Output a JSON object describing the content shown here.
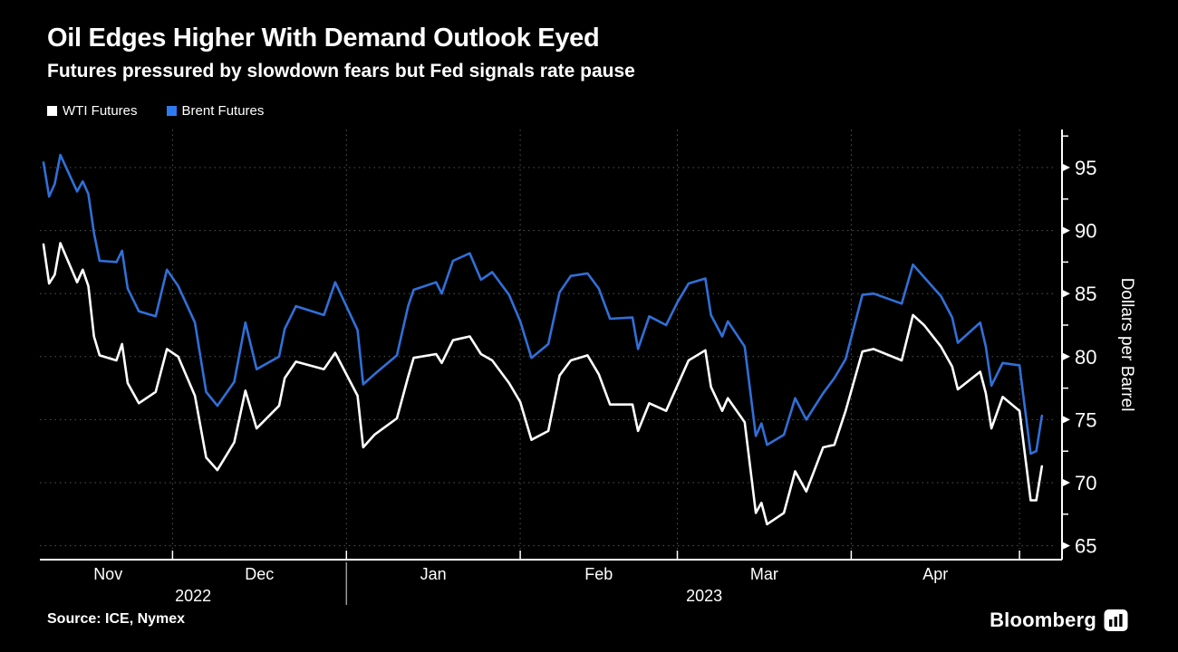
{
  "header": {
    "title": "Oil Edges Higher With Demand Outlook Eyed",
    "subtitle": "Futures pressured by slowdown fears but Fed signals rate pause"
  },
  "legend": [
    {
      "label": "WTI Futures",
      "color": "#ffffff"
    },
    {
      "label": "Brent Futures",
      "color": "#2e7bf0"
    }
  ],
  "chart_data": {
    "type": "line",
    "title": "Oil Edges Higher With Demand Outlook Eyed",
    "subtitle": "Futures pressured by slowdown fears but Fed signals rate pause",
    "ylabel": "Dollars per Barrel",
    "xlabel": "",
    "grid": "dotted",
    "legend_position": "top-left",
    "ylim": [
      63.9,
      98.0
    ],
    "y_ticks": [
      65,
      70,
      75,
      80,
      85,
      90,
      95
    ],
    "y_minor_ticks": [
      67.5,
      72.5,
      77.5,
      82.5,
      87.5,
      92.5,
      97.5
    ],
    "x_month_labels": [
      "Nov",
      "Dec",
      "Jan",
      "Feb",
      "Mar",
      "Apr"
    ],
    "x_month_boundary_offsets": [
      23,
      54,
      85,
      113,
      144,
      174
    ],
    "x_year_labels": [
      {
        "label": "2022"
      },
      {
        "label": "2023"
      }
    ],
    "year_divider_offset": 54,
    "x_dates": [
      "Nov 8",
      "Nov 9",
      "Nov 10",
      "Nov 11",
      "Nov 14",
      "Nov 15",
      "Nov 16",
      "Nov 17",
      "Nov 18",
      "Nov 21",
      "Nov 22",
      "Nov 23",
      "Nov 25",
      "Nov 28",
      "Nov 30",
      "Dec 2",
      "Dec 5",
      "Dec 7",
      "Dec 9",
      "Dec 12",
      "Dec 14",
      "Dec 16",
      "Dec 20",
      "Dec 21",
      "Dec 23",
      "Dec 28",
      "Dec 30",
      "Jan 3",
      "Jan 4",
      "Jan 6",
      "Jan 10",
      "Jan 12",
      "Jan 13",
      "Jan 17",
      "Jan 18",
      "Jan 20",
      "Jan 23",
      "Jan 25",
      "Jan 27",
      "Jan 30",
      "Feb 1",
      "Feb 3",
      "Feb 6",
      "Feb 8",
      "Feb 10",
      "Feb 13",
      "Feb 15",
      "Feb 17",
      "Feb 21",
      "Feb 22",
      "Feb 24",
      "Feb 27",
      "Mar 1",
      "Mar 3",
      "Mar 6",
      "Mar 7",
      "Mar 9",
      "Mar 10",
      "Mar 13",
      "Mar 15",
      "Mar 16",
      "Mar 17",
      "Mar 20",
      "Mar 22",
      "Mar 24",
      "Mar 27",
      "Mar 29",
      "Mar 31",
      "Apr 3",
      "Apr 5",
      "Apr 10",
      "Apr 12",
      "Apr 14",
      "Apr 17",
      "Apr 19",
      "Apr 20",
      "Apr 24",
      "Apr 25",
      "Apr 26",
      "Apr 28",
      "May 1",
      "May 3",
      "May 4",
      "May 5"
    ],
    "day_offsets": [
      0,
      1,
      2,
      3,
      6,
      7,
      8,
      9,
      10,
      13,
      14,
      15,
      17,
      20,
      22,
      24,
      27,
      29,
      31,
      34,
      36,
      38,
      42,
      43,
      45,
      50,
      52,
      56,
      57,
      59,
      63,
      65,
      66,
      70,
      71,
      73,
      76,
      78,
      80,
      83,
      85,
      87,
      90,
      92,
      94,
      97,
      99,
      101,
      105,
      106,
      108,
      111,
      113,
      115,
      118,
      119,
      121,
      122,
      125,
      127,
      128,
      129,
      132,
      134,
      136,
      139,
      141,
      143,
      146,
      148,
      153,
      155,
      157,
      160,
      162,
      163,
      167,
      168,
      169,
      171,
      174,
      176,
      177,
      178
    ],
    "series": [
      {
        "name": "WTI Futures",
        "color": "#ffffff",
        "values": [
          88.9,
          85.8,
          86.5,
          89.0,
          85.9,
          86.9,
          85.6,
          81.6,
          80.1,
          79.7,
          81.0,
          77.9,
          76.3,
          77.2,
          80.6,
          80.0,
          76.9,
          72.0,
          71.0,
          73.2,
          77.3,
          74.3,
          76.1,
          78.3,
          79.6,
          79.0,
          80.3,
          76.9,
          72.8,
          73.8,
          75.1,
          78.4,
          79.9,
          80.2,
          79.5,
          81.3,
          81.6,
          80.2,
          79.7,
          77.9,
          76.4,
          73.4,
          74.1,
          78.5,
          79.7,
          80.1,
          78.6,
          76.2,
          76.2,
          74.1,
          76.3,
          75.7,
          77.7,
          79.7,
          80.5,
          77.6,
          75.7,
          76.7,
          74.8,
          67.6,
          68.4,
          66.7,
          67.6,
          70.9,
          69.3,
          72.8,
          73.0,
          75.7,
          80.4,
          80.6,
          79.7,
          83.3,
          82.5,
          80.8,
          79.2,
          77.4,
          78.8,
          77.1,
          74.3,
          76.8,
          75.7,
          68.6,
          68.6,
          71.3
        ]
      },
      {
        "name": "Brent Futures",
        "color": "#3070d8",
        "values": [
          95.4,
          92.7,
          93.7,
          96.0,
          93.1,
          93.9,
          92.9,
          89.8,
          87.6,
          87.5,
          88.4,
          85.4,
          83.6,
          83.2,
          86.9,
          85.6,
          82.7,
          77.2,
          76.1,
          78.0,
          82.7,
          79.0,
          80.0,
          82.2,
          84.0,
          83.3,
          85.9,
          82.1,
          77.8,
          78.6,
          80.1,
          84.0,
          85.3,
          85.9,
          85.0,
          87.6,
          88.2,
          86.1,
          86.7,
          84.9,
          82.8,
          79.9,
          81.0,
          85.1,
          86.4,
          86.6,
          85.4,
          83.0,
          83.1,
          80.6,
          83.2,
          82.5,
          84.3,
          85.8,
          86.2,
          83.3,
          81.6,
          82.8,
          80.8,
          73.7,
          74.7,
          73.0,
          73.8,
          76.7,
          75.0,
          77.1,
          78.3,
          79.8,
          84.9,
          85.0,
          84.2,
          87.3,
          86.3,
          84.8,
          83.1,
          81.1,
          82.7,
          80.8,
          77.7,
          79.5,
          79.3,
          72.3,
          72.5,
          75.3
        ]
      }
    ]
  },
  "footer": {
    "source": "Source: ICE, Nymex",
    "brand": "Bloomberg"
  },
  "colors": {
    "background": "#000000",
    "text": "#ffffff",
    "grid": "#555555",
    "axis": "#ffffff",
    "wti": "#ffffff",
    "brent": "#3070d8"
  }
}
